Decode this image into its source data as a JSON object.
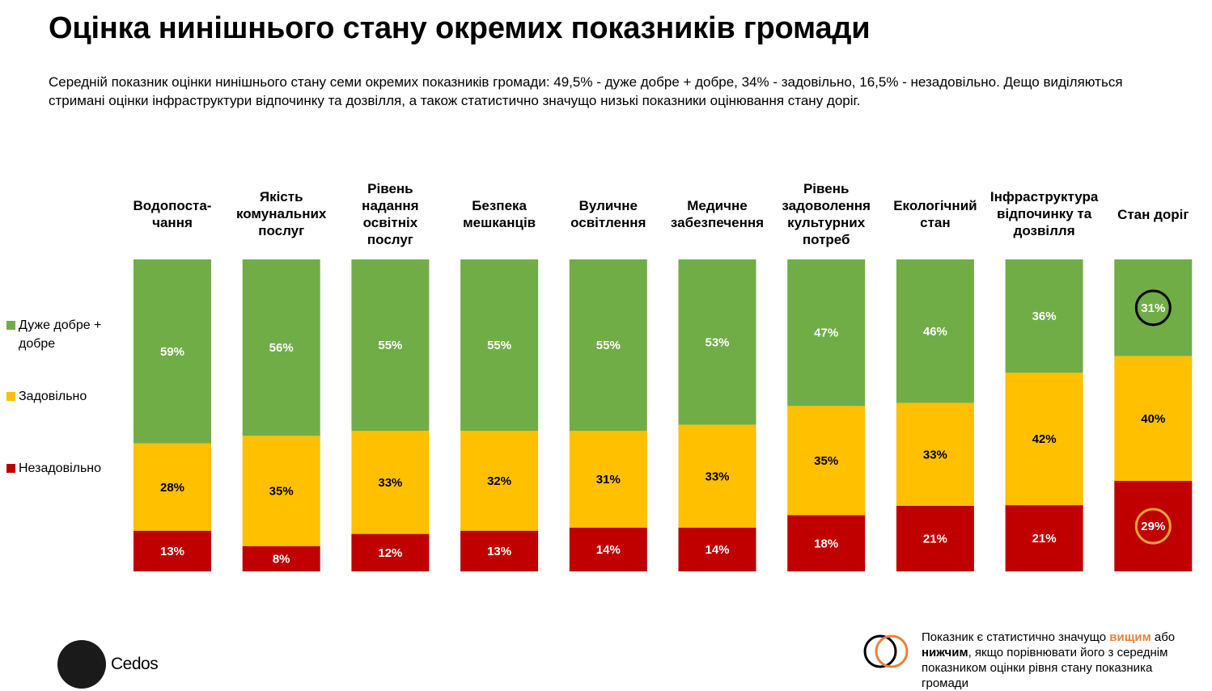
{
  "title": "Оцінка нинішнього стану окремих показників громади",
  "subtitle": "Середній показник оцінки нинішнього стану семи окремих показників громади: 49,5% - дуже добре + добре, 34% - задовільно, 16,5% - незадовільно. Дещо виділяються стримані оцінки інфраструктури відпочинку та дозвілля, а також статистично значущо низькі показники оцінювання стану доріг.",
  "legend": [
    {
      "label": "Дуже добре + добре",
      "color": "#70AD47"
    },
    {
      "label": "Задовільно",
      "color": "#FFC000"
    },
    {
      "label": "Незадовільно",
      "color": "#C00000"
    }
  ],
  "chart_data": {
    "type": "bar",
    "stacked": true,
    "normalized": true,
    "categories": [
      "Водопоста-чання",
      "Якість комунальних послуг",
      "Рівень надання освітніх послуг",
      "Безпека мешканців",
      "Вуличне освітлення",
      "Медичне забезпечення",
      "Рівень задоволення культурних потреб",
      "Екологічний стан",
      "Інфраструктура відпочинку та дозвілля",
      "Стан доріг"
    ],
    "category_lines": [
      [
        "Водопоста-",
        "чання"
      ],
      [
        "Якість",
        "комунальних",
        "послуг"
      ],
      [
        "Рівень",
        "надання",
        "освітніх",
        "послуг"
      ],
      [
        "Безпека",
        "мешканців"
      ],
      [
        "Вуличне",
        "освітлення"
      ],
      [
        "Медичне",
        "забезпечення"
      ],
      [
        "Рівень",
        "задоволення",
        "культурних",
        "потреб"
      ],
      [
        "Екологічний",
        "стан"
      ],
      [
        "Інфраструктура",
        "відпочинку та",
        "дозвілля"
      ],
      [
        "Стан доріг"
      ]
    ],
    "series": [
      {
        "name": "Дуже добре + добре",
        "color": "#70AD47",
        "values": [
          59,
          56,
          55,
          55,
          55,
          53,
          47,
          46,
          36,
          31
        ]
      },
      {
        "name": "Задовільно",
        "color": "#FFC000",
        "values": [
          28,
          35,
          33,
          32,
          31,
          33,
          35,
          33,
          42,
          40
        ]
      },
      {
        "name": "Незадовільно",
        "color": "#C00000",
        "values": [
          13,
          8,
          12,
          13,
          14,
          14,
          18,
          21,
          21,
          29
        ]
      }
    ],
    "value_suffix": "%",
    "highlights": [
      {
        "category": "Стан доріг",
        "series": "Дуже добре + добре",
        "type": "lower",
        "color": "#000000"
      },
      {
        "category": "Стан доріг",
        "series": "Незадовільно",
        "type": "higher",
        "color": "#E8A33A"
      }
    ]
  },
  "logo": {
    "text": "Cedos"
  },
  "note": {
    "part1": "Показник є статистично значущо ",
    "higher": "вищим",
    "part2": " або ",
    "lower": "нижчим",
    "part3": ", якщо порівнювати його з середнім показником оцінки рівня стану показника громади"
  }
}
